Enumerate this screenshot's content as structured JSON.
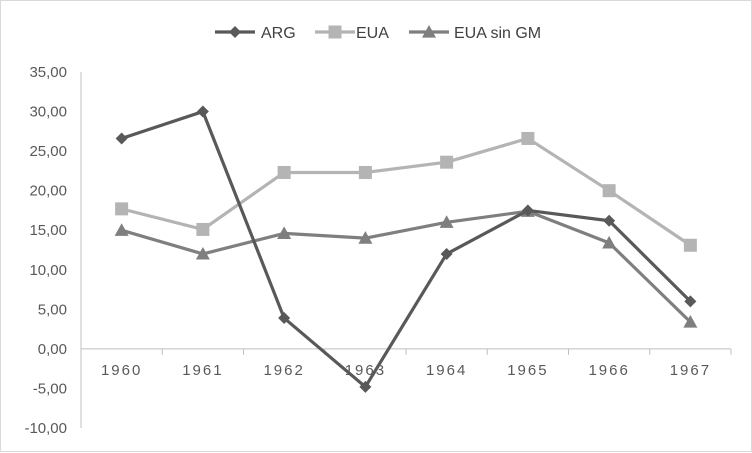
{
  "chart_data": {
    "type": "line",
    "title": "",
    "xlabel": "",
    "ylabel": "",
    "categories": [
      "1960",
      "1961",
      "1962",
      "1963",
      "1964",
      "1965",
      "1966",
      "1967"
    ],
    "ylim": [
      -10,
      35
    ],
    "yticks": [
      -10,
      -5,
      0,
      5,
      10,
      15,
      20,
      25,
      30,
      35
    ],
    "ytick_labels": [
      "-10,00",
      "-5,00",
      "0,00",
      "5,00",
      "10,00",
      "15,00",
      "20,00",
      "25,00",
      "30,00",
      "35,00"
    ],
    "grid": false,
    "legend_position": "top-center",
    "series": [
      {
        "name": "ARG",
        "color": "#595959",
        "marker": "diamond",
        "values": [
          26.6,
          30.0,
          3.9,
          -4.8,
          12.0,
          17.5,
          16.2,
          6.0
        ]
      },
      {
        "name": "EUA",
        "color": "#b4b4b4",
        "marker": "square",
        "values": [
          17.7,
          15.1,
          22.3,
          22.3,
          23.6,
          26.6,
          20.0,
          13.1
        ]
      },
      {
        "name": "EUA sin GM",
        "color": "#7f7f7f",
        "marker": "triangle",
        "values": [
          15.0,
          12.0,
          14.6,
          14.0,
          16.0,
          17.4,
          13.4,
          3.4
        ]
      }
    ]
  }
}
